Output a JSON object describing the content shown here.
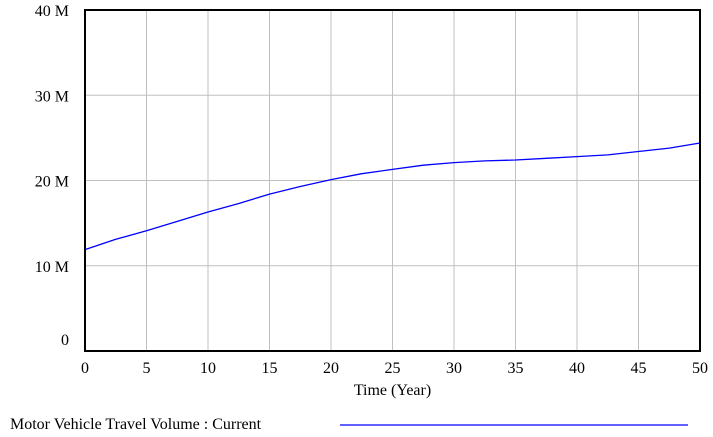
{
  "chart_data": {
    "type": "line",
    "title": "",
    "xlabel": "Time (Year)",
    "ylabel": "",
    "xlim": [
      0,
      50
    ],
    "ylim": [
      0,
      40000000
    ],
    "x_ticks": [
      0,
      5,
      10,
      15,
      20,
      25,
      30,
      35,
      40,
      45,
      50
    ],
    "x_tick_labels": [
      "0",
      "5",
      "10",
      "15",
      "20",
      "25",
      "30",
      "35",
      "40",
      "45",
      "50"
    ],
    "y_ticks": [
      0,
      10000000,
      20000000,
      30000000,
      40000000
    ],
    "y_tick_labels": [
      "0",
      "10 M",
      "20 M",
      "30 M",
      "40 M"
    ],
    "grid": true,
    "legend_position": "bottom",
    "series": [
      {
        "name": "Motor Vehicle Travel Volume : Current",
        "color": "#0000ff",
        "x": [
          0,
          2.5,
          5,
          7.5,
          10,
          12.5,
          15,
          17.5,
          20,
          22.5,
          25,
          27.5,
          30,
          32.5,
          35,
          37.5,
          40,
          42.5,
          45,
          47.5,
          50
        ],
        "y": [
          11900000,
          13100000,
          14100000,
          15200000,
          16300000,
          17300000,
          18400000,
          19300000,
          20100000,
          20800000,
          21300000,
          21800000,
          22100000,
          22300000,
          22400000,
          22600000,
          22800000,
          23000000,
          23400000,
          23800000,
          24400000
        ]
      }
    ]
  }
}
